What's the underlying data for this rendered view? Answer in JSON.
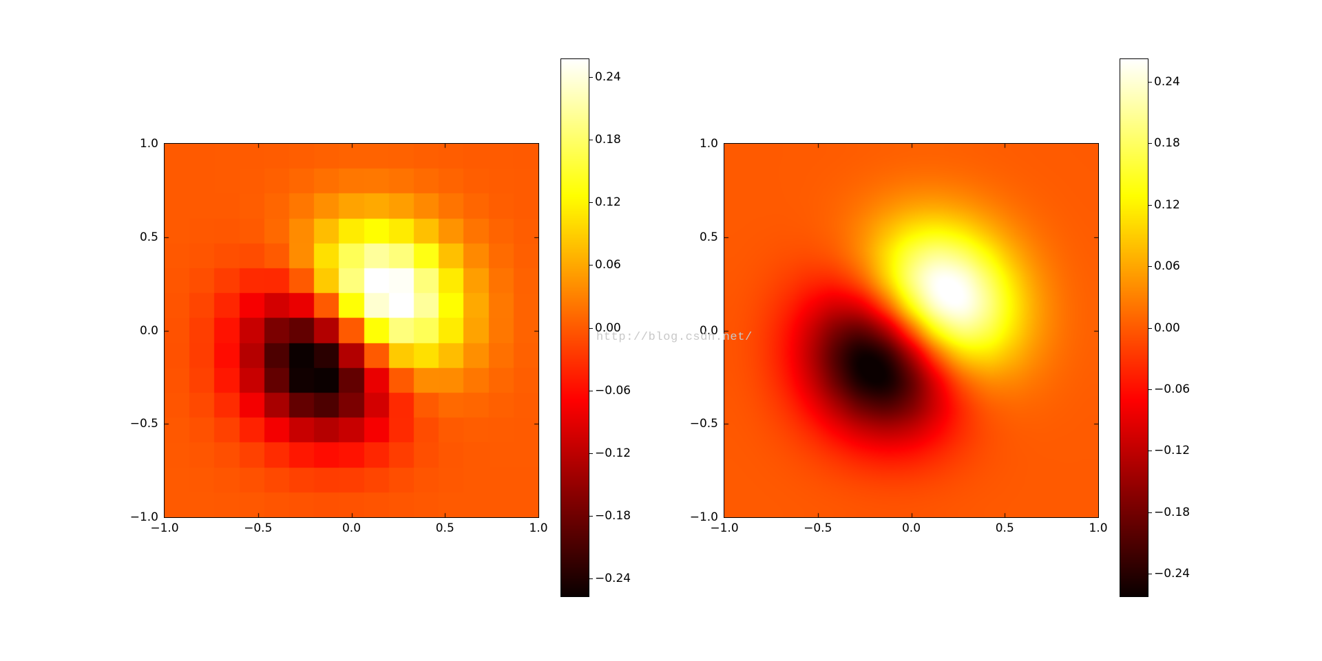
{
  "watermark": {
    "text": "http://blog.csdn.net/"
  },
  "colors": {
    "background": "#ffffff",
    "spine": "#000000",
    "tick_label": "#000000",
    "watermark": "#c8c8c8",
    "colormap_anchors": {
      "min": "#0a0000",
      "zero": "#ff5a00",
      "max": "#ffffff"
    }
  },
  "chart_data": [
    {
      "id": "left",
      "type": "heatmap",
      "colormap": "hot",
      "interpolation": "nearest",
      "grid_size": [
        15,
        15
      ],
      "extent": {
        "xmin": -1,
        "xmax": 1,
        "ymin": -1,
        "ymax": 1
      },
      "x_tick_values": [
        -1,
        -0.5,
        0,
        0.5,
        1
      ],
      "x_tick_labels": [
        "−1.0",
        "−0.5",
        "0.0",
        "0.5",
        "1.0"
      ],
      "y_tick_values": [
        -1,
        -0.5,
        0,
        0.5,
        1
      ],
      "y_tick_labels": [
        "−1.0",
        "−0.5",
        "0.0",
        "0.5",
        "1.0"
      ],
      "vmin": -0.2573,
      "vmax": 0.2573,
      "colorbar": {
        "tick_values": [
          0.24,
          0.18,
          0.12,
          0.06,
          0,
          -0.06,
          -0.12,
          -0.18,
          -0.24
        ],
        "tick_labels": [
          "0.24",
          "0.18",
          "0.12",
          "0.06",
          "0.00",
          "−0.06",
          "−0.12",
          "−0.18",
          "−0.24"
        ]
      },
      "values_rows_top_to_bottom": [
        [
          0.0,
          0.0,
          0.0002,
          0.0006,
          0.0015,
          0.0032,
          0.0052,
          0.0067,
          0.007,
          0.0058,
          0.0038,
          0.0021,
          0.0009,
          0.0003,
          0.0001
        ],
        [
          0.0,
          0.0,
          0.0003,
          0.0014,
          0.0043,
          0.0096,
          0.0164,
          0.0218,
          0.0229,
          0.0193,
          0.013,
          0.0071,
          0.0031,
          0.0011,
          0.0003
        ],
        [
          -0.0002,
          -0.0003,
          0.0,
          0.0022,
          0.0089,
          0.0222,
          0.0402,
          0.0557,
          0.0604,
          0.0519,
          0.0356,
          0.0196,
          0.0087,
          0.0031,
          0.0009
        ],
        [
          -0.0006,
          -0.0014,
          -0.0022,
          0.0,
          0.0111,
          0.0371,
          0.0756,
          0.1117,
          0.126,
          0.1114,
          0.078,
          0.0436,
          0.0196,
          0.0071,
          0.0021
        ],
        [
          -0.0015,
          -0.0043,
          -0.0089,
          -0.0111,
          0.0,
          0.0379,
          0.103,
          0.1711,
          0.206,
          0.1896,
          0.1366,
          0.078,
          0.0356,
          0.013,
          0.0038
        ],
        [
          -0.0032,
          -0.0096,
          -0.0222,
          -0.0371,
          -0.0379,
          0.0,
          0.0858,
          0.19,
          0.2573,
          0.2526,
          0.1896,
          0.1114,
          0.0519,
          0.0193,
          0.0058
        ],
        [
          -0.0052,
          -0.0164,
          -0.0402,
          -0.0756,
          -0.103,
          -0.0858,
          0.0,
          0.129,
          0.233,
          0.2573,
          0.206,
          0.126,
          0.0604,
          0.0229,
          0.007
        ],
        [
          -0.0067,
          -0.0218,
          -0.0557,
          -0.1117,
          -0.1711,
          -0.19,
          -0.129,
          0.0,
          0.129,
          0.19,
          0.1711,
          0.1117,
          0.0557,
          0.0218,
          0.0067
        ],
        [
          -0.007,
          -0.0229,
          -0.0604,
          -0.126,
          -0.206,
          -0.2573,
          -0.233,
          -0.129,
          0.0,
          0.0858,
          0.103,
          0.0756,
          0.0402,
          0.0164,
          0.0052
        ],
        [
          -0.0058,
          -0.0193,
          -0.0519,
          -0.1114,
          -0.1896,
          -0.2526,
          -0.2573,
          -0.19,
          -0.0858,
          0.0,
          0.0379,
          0.0371,
          0.0222,
          0.0096,
          0.0032
        ],
        [
          -0.0038,
          -0.013,
          -0.0356,
          -0.078,
          -0.1366,
          -0.1896,
          -0.206,
          -0.1711,
          -0.103,
          -0.0379,
          0.0,
          0.0111,
          0.0089,
          0.0043,
          0.0015
        ],
        [
          -0.0021,
          -0.0071,
          -0.0196,
          -0.0436,
          -0.078,
          -0.1114,
          -0.126,
          -0.1117,
          -0.0756,
          -0.0371,
          -0.0111,
          0.0,
          0.0022,
          0.0014,
          0.0006
        ],
        [
          -0.0009,
          -0.0031,
          -0.0087,
          -0.0196,
          -0.0356,
          -0.0519,
          -0.0604,
          -0.0557,
          -0.0402,
          -0.0222,
          -0.0089,
          -0.0022,
          0.0,
          0.0003,
          0.0002
        ],
        [
          -0.0003,
          -0.0011,
          -0.0031,
          -0.0071,
          -0.013,
          -0.0193,
          -0.0229,
          -0.0218,
          -0.0164,
          -0.0096,
          -0.0043,
          -0.0014,
          -0.0003,
          0.0,
          0.0
        ],
        [
          -0.0001,
          -0.0003,
          -0.0009,
          -0.0021,
          -0.0038,
          -0.0058,
          -0.007,
          -0.0067,
          -0.0052,
          -0.0032,
          -0.0015,
          -0.0006,
          -0.0002,
          0.0,
          0.0
        ]
      ]
    },
    {
      "id": "right",
      "type": "heatmap",
      "colormap": "hot",
      "interpolation": "cubic",
      "grid_size": [
        15,
        15
      ],
      "extent": {
        "xmin": -1,
        "xmax": 1,
        "ymin": -1,
        "ymax": 1
      },
      "x_tick_values": [
        -1,
        -0.5,
        0,
        0.5,
        1
      ],
      "x_tick_labels": [
        "−1.0",
        "−0.5",
        "0.0",
        "0.5",
        "1.0"
      ],
      "y_tick_values": [
        -1,
        -0.5,
        0,
        0.5,
        1
      ],
      "y_tick_labels": [
        "−1.0",
        "−0.5",
        "0.0",
        "0.5",
        "1.0"
      ],
      "vmin": -0.262,
      "vmax": 0.262,
      "colorbar": {
        "tick_values": [
          0.24,
          0.18,
          0.12,
          0.06,
          0,
          -0.06,
          -0.12,
          -0.18,
          -0.24
        ],
        "tick_labels": [
          "0.24",
          "0.18",
          "0.12",
          "0.06",
          "0.00",
          "−0.06",
          "−0.12",
          "−0.18",
          "−0.24"
        ]
      },
      "values_rows_top_to_bottom": [
        [
          0.0,
          0.0,
          0.0002,
          0.0006,
          0.0015,
          0.0032,
          0.0052,
          0.0067,
          0.007,
          0.0058,
          0.0038,
          0.0021,
          0.0009,
          0.0003,
          0.0001
        ],
        [
          0.0,
          0.0,
          0.0003,
          0.0014,
          0.0043,
          0.0096,
          0.0164,
          0.0218,
          0.0229,
          0.0193,
          0.013,
          0.0071,
          0.0031,
          0.0011,
          0.0003
        ],
        [
          -0.0002,
          -0.0003,
          0.0,
          0.0022,
          0.0089,
          0.0222,
          0.0402,
          0.0557,
          0.0604,
          0.0519,
          0.0356,
          0.0196,
          0.0087,
          0.0031,
          0.0009
        ],
        [
          -0.0006,
          -0.0014,
          -0.0022,
          0.0,
          0.0111,
          0.0371,
          0.0756,
          0.1117,
          0.126,
          0.1114,
          0.078,
          0.0436,
          0.0196,
          0.0071,
          0.0021
        ],
        [
          -0.0015,
          -0.0043,
          -0.0089,
          -0.0111,
          0.0,
          0.0379,
          0.103,
          0.1711,
          0.206,
          0.1896,
          0.1366,
          0.078,
          0.0356,
          0.013,
          0.0038
        ],
        [
          -0.0032,
          -0.0096,
          -0.0222,
          -0.0371,
          -0.0379,
          0.0,
          0.0858,
          0.19,
          0.2573,
          0.2526,
          0.1896,
          0.1114,
          0.0519,
          0.0193,
          0.0058
        ],
        [
          -0.0052,
          -0.0164,
          -0.0402,
          -0.0756,
          -0.103,
          -0.0858,
          0.0,
          0.129,
          0.233,
          0.2573,
          0.206,
          0.126,
          0.0604,
          0.0229,
          0.007
        ],
        [
          -0.0067,
          -0.0218,
          -0.0557,
          -0.1117,
          -0.1711,
          -0.19,
          -0.129,
          0.0,
          0.129,
          0.19,
          0.1711,
          0.1117,
          0.0557,
          0.0218,
          0.0067
        ],
        [
          -0.007,
          -0.0229,
          -0.0604,
          -0.126,
          -0.206,
          -0.2573,
          -0.233,
          -0.129,
          0.0,
          0.0858,
          0.103,
          0.0756,
          0.0402,
          0.0164,
          0.0052
        ],
        [
          -0.0058,
          -0.0193,
          -0.0519,
          -0.1114,
          -0.1896,
          -0.2526,
          -0.2573,
          -0.19,
          -0.0858,
          0.0,
          0.0379,
          0.0371,
          0.0222,
          0.0096,
          0.0032
        ],
        [
          -0.0038,
          -0.013,
          -0.0356,
          -0.078,
          -0.1366,
          -0.1896,
          -0.206,
          -0.1711,
          -0.103,
          -0.0379,
          0.0,
          0.0111,
          0.0089,
          0.0043,
          0.0015
        ],
        [
          -0.0021,
          -0.0071,
          -0.0196,
          -0.0436,
          -0.078,
          -0.1114,
          -0.126,
          -0.1117,
          -0.0756,
          -0.0371,
          -0.0111,
          0.0,
          0.0022,
          0.0014,
          0.0006
        ],
        [
          -0.0009,
          -0.0031,
          -0.0087,
          -0.0196,
          -0.0356,
          -0.0519,
          -0.0604,
          -0.0557,
          -0.0402,
          -0.0222,
          -0.0089,
          -0.0022,
          0.0,
          0.0003,
          0.0002
        ],
        [
          -0.0003,
          -0.0011,
          -0.0031,
          -0.0071,
          -0.013,
          -0.0193,
          -0.0229,
          -0.0218,
          -0.0164,
          -0.0096,
          -0.0043,
          -0.0014,
          -0.0003,
          0.0,
          0.0
        ],
        [
          -0.0001,
          -0.0003,
          -0.0009,
          -0.0021,
          -0.0038,
          -0.0058,
          -0.007,
          -0.0067,
          -0.0052,
          -0.0032,
          -0.0015,
          -0.0006,
          -0.0002,
          0.0,
          0.0
        ]
      ]
    }
  ]
}
